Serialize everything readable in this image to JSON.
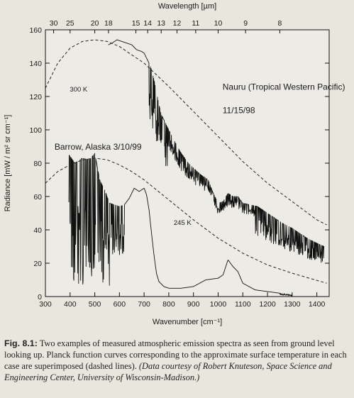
{
  "chart_data": {
    "type": "line",
    "title": "",
    "xlabel": "Wavenumber [cm⁻¹]",
    "ylabel": "Radiance [mW / m² sr cm⁻¹]",
    "top_axis_label": "Wavelength [µm]",
    "xlim": [
      300,
      1450
    ],
    "ylim": [
      0,
      160
    ],
    "x_ticks": [
      "300",
      "400",
      "500",
      "600",
      "700",
      "800",
      "900",
      "1000",
      "1100",
      "1200",
      "1300",
      "1400"
    ],
    "y_ticks": [
      "0",
      "20",
      "40",
      "60",
      "80",
      "100",
      "120",
      "140",
      "160"
    ],
    "top_ticks": [
      {
        "label": "30",
        "wavenumber": 333.3
      },
      {
        "label": "25",
        "wavenumber": 400
      },
      {
        "label": "20",
        "wavenumber": 500
      },
      {
        "label": "18",
        "wavenumber": 555.6
      },
      {
        "label": "15",
        "wavenumber": 666.7
      },
      {
        "label": "14",
        "wavenumber": 714.3
      },
      {
        "label": "13",
        "wavenumber": 769.2
      },
      {
        "label": "12",
        "wavenumber": 833.3
      },
      {
        "label": "11",
        "wavenumber": 909.1
      },
      {
        "label": "10",
        "wavenumber": 1000
      },
      {
        "label": "9",
        "wavenumber": 1111.1
      },
      {
        "label": "8",
        "wavenumber": 1250
      }
    ],
    "grid": false,
    "series": [
      {
        "name": "Nauru (Tropical Western Pacific) 11/15/98",
        "style": "solid",
        "x": [
          555,
          570,
          590,
          610,
          630,
          650,
          670,
          690,
          700,
          710,
          720,
          730,
          740,
          750,
          760,
          770,
          780,
          800,
          820,
          850,
          880,
          900,
          930,
          960,
          980,
          1000,
          1020,
          1040,
          1060,
          1080,
          1100,
          1130,
          1160,
          1200,
          1230,
          1260,
          1300,
          1330,
          1360,
          1400,
          1430
        ],
        "y": [
          151,
          152,
          154,
          153,
          152,
          151,
          148,
          147,
          146,
          143,
          140,
          136,
          130,
          123,
          115,
          109,
          106,
          100,
          94,
          86,
          80,
          77,
          73,
          70,
          62,
          56,
          57,
          62,
          60,
          60,
          56,
          55,
          54,
          50,
          47,
          44,
          41,
          38,
          35,
          32,
          30
        ]
      },
      {
        "name": "Barrow, Alaska 3/10/99",
        "style": "solid",
        "x": [
          395,
          420,
          450,
          480,
          500,
          520,
          540,
          560,
          580,
          600,
          620,
          640,
          660,
          680,
          700,
          710,
          720,
          730,
          740,
          750,
          760,
          780,
          800,
          850,
          900,
          950,
          1000,
          1020,
          1040,
          1060,
          1080,
          1100,
          1150,
          1200,
          1250,
          1300
        ],
        "y": [
          85,
          80,
          83,
          82,
          86,
          70,
          64,
          56,
          55,
          54,
          55,
          59,
          65,
          63,
          65,
          61,
          52,
          38,
          25,
          14,
          9,
          6,
          5,
          5,
          6,
          10,
          11,
          13,
          22,
          18,
          15,
          8,
          4,
          3,
          2,
          1
        ]
      },
      {
        "name": "300 K",
        "style": "dashed",
        "x": [
          300,
          350,
          400,
          450,
          500,
          550,
          600,
          650,
          700,
          750,
          800,
          900,
          1000,
          1100,
          1200,
          1300,
          1400,
          1440
        ],
        "y": [
          125,
          140,
          149,
          153,
          154,
          153,
          150,
          145,
          140,
          133,
          126,
          111,
          96,
          81,
          68,
          57,
          46,
          43
        ]
      },
      {
        "name": "245 K",
        "style": "dashed",
        "x": [
          300,
          350,
          400,
          450,
          500,
          550,
          600,
          650,
          700,
          750,
          800,
          900,
          1000,
          1100,
          1200,
          1300,
          1440
        ],
        "y": [
          68,
          75,
          79,
          82,
          83,
          82,
          79,
          75,
          70,
          64,
          58,
          46,
          35,
          26,
          19,
          14,
          8
        ]
      }
    ],
    "annotations": [
      {
        "text": "Nauru (Tropical Western Pacific)",
        "x": 1018,
        "y": 124,
        "size": 12
      },
      {
        "text": "11/15/98",
        "x": 1018,
        "y": 110,
        "size": 12
      },
      {
        "text": "300 K",
        "x": 399,
        "y": 123,
        "size": 9.5
      },
      {
        "text": "Barrow, Alaska 3/10/99",
        "x": 337,
        "y": 88,
        "size": 12
      },
      {
        "text": "245 K",
        "x": 820,
        "y": 43,
        "size": 9.5
      }
    ]
  },
  "caption": {
    "fig_label": "Fig. 8.1:",
    "text": " Two examples of measured atmospheric emission spectra as seen from ground level looking up. Planck function curves corresponding to the approximate surface temperature in each case are superimposed (dashed lines).",
    "credit": " (Data courtesy of Robert Knuteson, Space Science and Engineering Center, University of Wisconsin-Madison.)"
  }
}
